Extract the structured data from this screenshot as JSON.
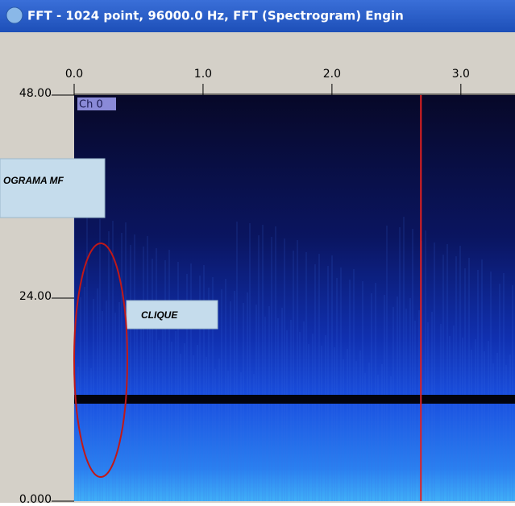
{
  "window": {
    "title": "FFT - 1024 point, 96000.0 Hz, FFT (Spectrogram) Engin"
  },
  "chart_data": {
    "type": "spectrogram",
    "channel_label": "Ch 0",
    "xlim": [
      0,
      3.42
    ],
    "xticks": [
      {
        "value": 0,
        "label": "0.0"
      },
      {
        "value": 1,
        "label": "1.0"
      },
      {
        "value": 2,
        "label": "2.0"
      },
      {
        "value": 3,
        "label": "3.0"
      }
    ],
    "ylim": [
      0,
      48
    ],
    "yticks": [
      {
        "value": 0,
        "label": "0.000"
      },
      {
        "value": 24,
        "label": "24.00"
      },
      {
        "value": 48,
        "label": "48.00"
      }
    ],
    "cursor": 2.69,
    "cursor_color": "#e02020"
  },
  "annotations": [
    {
      "text": "OGRAMA MF"
    },
    {
      "text": "CLIQUE"
    }
  ]
}
